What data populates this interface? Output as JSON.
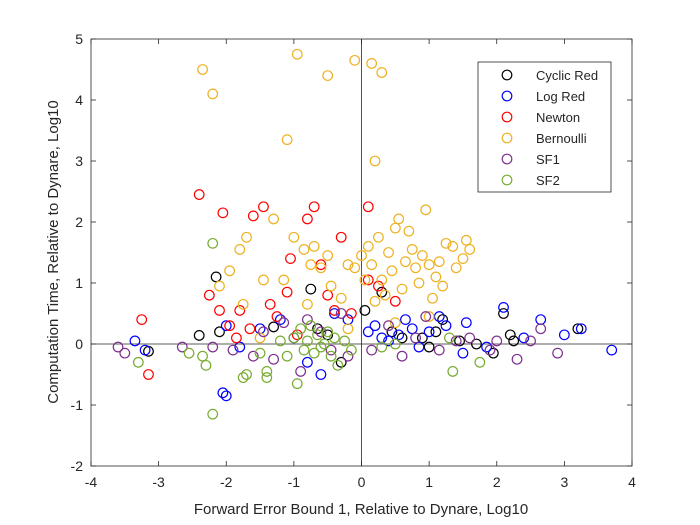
{
  "chart_data": {
    "type": "scatter",
    "title": "",
    "xlabel": "Forward Error Bound 1, Relative to Dynare, Log10",
    "ylabel": "Computation Time, Relative to Dynare, Log10",
    "xlim": [
      -4,
      4
    ],
    "ylim": [
      -2,
      5
    ],
    "xticks": [
      -4,
      -3,
      -2,
      -1,
      0,
      1,
      2,
      3,
      4
    ],
    "yticks": [
      -2,
      -1,
      0,
      1,
      2,
      3,
      4,
      5
    ],
    "reference_lines": {
      "x": 0,
      "y": 0
    },
    "grid": false,
    "legend_position": "top-right",
    "marker": "open-circle",
    "series": [
      {
        "name": "Cyclic Red",
        "color": "#000000",
        "points": [
          [
            -3.15,
            -0.12
          ],
          [
            -2.4,
            0.14
          ],
          [
            -2.15,
            1.1
          ],
          [
            -2.1,
            0.2
          ],
          [
            -1.3,
            0.28
          ],
          [
            -0.75,
            0.9
          ],
          [
            -0.65,
            0.25
          ],
          [
            -0.5,
            0.15
          ],
          [
            -0.3,
            -0.3
          ],
          [
            0.05,
            0.55
          ],
          [
            0.3,
            0.85
          ],
          [
            0.45,
            0.2
          ],
          [
            0.6,
            0.1
          ],
          [
            0.9,
            0.1
          ],
          [
            1.0,
            -0.05
          ],
          [
            1.1,
            0.2
          ],
          [
            1.2,
            0.4
          ],
          [
            1.45,
            0.05
          ],
          [
            1.7,
            0.0
          ],
          [
            1.95,
            -0.15
          ],
          [
            2.1,
            0.5
          ],
          [
            2.2,
            0.15
          ],
          [
            2.25,
            0.05
          ],
          [
            3.2,
            0.25
          ]
        ]
      },
      {
        "name": "Log Red",
        "color": "#0000FF",
        "points": [
          [
            -3.35,
            0.05
          ],
          [
            -3.2,
            -0.1
          ],
          [
            -2.05,
            -0.8
          ],
          [
            -2.0,
            -0.85
          ],
          [
            -2.0,
            0.3
          ],
          [
            -1.8,
            -0.05
          ],
          [
            -1.5,
            0.25
          ],
          [
            -1.2,
            0.4
          ],
          [
            -1.0,
            0.1
          ],
          [
            -0.8,
            -0.3
          ],
          [
            -0.6,
            -0.5
          ],
          [
            -0.4,
            0.5
          ],
          [
            -0.2,
            0.4
          ],
          [
            0.1,
            0.2
          ],
          [
            0.2,
            0.3
          ],
          [
            0.3,
            0.1
          ],
          [
            0.4,
            0.05
          ],
          [
            0.55,
            0.15
          ],
          [
            0.65,
            0.4
          ],
          [
            0.75,
            0.25
          ],
          [
            0.85,
            -0.05
          ],
          [
            1.0,
            0.2
          ],
          [
            1.15,
            0.45
          ],
          [
            1.25,
            0.3
          ],
          [
            1.5,
            -0.15
          ],
          [
            1.55,
            0.35
          ],
          [
            1.85,
            -0.05
          ],
          [
            2.1,
            0.6
          ],
          [
            2.4,
            0.1
          ],
          [
            2.65,
            0.4
          ],
          [
            3.0,
            0.15
          ],
          [
            3.25,
            0.25
          ],
          [
            3.7,
            -0.1
          ]
        ]
      },
      {
        "name": "Newton",
        "color": "#FF0000",
        "points": [
          [
            -3.25,
            0.4
          ],
          [
            -3.15,
            -0.5
          ],
          [
            -2.4,
            2.45
          ],
          [
            -2.25,
            0.8
          ],
          [
            -2.05,
            2.15
          ],
          [
            -2.1,
            0.55
          ],
          [
            -1.95,
            0.3
          ],
          [
            -1.85,
            0.1
          ],
          [
            -1.8,
            0.55
          ],
          [
            -1.65,
            0.25
          ],
          [
            -1.6,
            2.1
          ],
          [
            -1.45,
            2.25
          ],
          [
            -1.35,
            0.65
          ],
          [
            -1.25,
            0.45
          ],
          [
            -1.1,
            0.85
          ],
          [
            -1.05,
            1.4
          ],
          [
            -0.95,
            0.15
          ],
          [
            -0.8,
            2.05
          ],
          [
            -0.7,
            2.25
          ],
          [
            -0.6,
            1.3
          ],
          [
            -0.5,
            0.8
          ],
          [
            -0.4,
            0.55
          ],
          [
            -0.3,
            1.75
          ],
          [
            -0.15,
            0.5
          ],
          [
            0.1,
            1.05
          ],
          [
            0.1,
            2.25
          ],
          [
            0.25,
            0.95
          ],
          [
            0.5,
            0.7
          ]
        ]
      },
      {
        "name": "Bernoulli",
        "color": "#EDB120",
        "points": [
          [
            -2.35,
            4.5
          ],
          [
            -2.2,
            4.1
          ],
          [
            -1.1,
            3.35
          ],
          [
            -0.95,
            4.75
          ],
          [
            -0.5,
            4.4
          ],
          [
            -0.1,
            4.65
          ],
          [
            0.15,
            4.6
          ],
          [
            0.3,
            4.45
          ],
          [
            0.2,
            3.0
          ],
          [
            -2.1,
            0.95
          ],
          [
            -1.95,
            1.2
          ],
          [
            -1.75,
            0.65
          ],
          [
            -1.8,
            1.55
          ],
          [
            -1.7,
            1.75
          ],
          [
            -1.45,
            1.05
          ],
          [
            -1.3,
            2.05
          ],
          [
            -1.15,
            1.05
          ],
          [
            -1.0,
            1.75
          ],
          [
            -0.85,
            1.55
          ],
          [
            -0.8,
            0.65
          ],
          [
            -0.75,
            1.3
          ],
          [
            -0.7,
            1.6
          ],
          [
            -0.6,
            1.25
          ],
          [
            -0.5,
            1.45
          ],
          [
            -0.45,
            0.95
          ],
          [
            -0.3,
            0.75
          ],
          [
            -0.2,
            1.3
          ],
          [
            -0.1,
            1.25
          ],
          [
            0.0,
            1.45
          ],
          [
            0.05,
            1.05
          ],
          [
            0.1,
            1.6
          ],
          [
            0.15,
            1.3
          ],
          [
            0.2,
            0.7
          ],
          [
            0.25,
            1.75
          ],
          [
            0.3,
            1.05
          ],
          [
            0.35,
            0.8
          ],
          [
            0.4,
            1.5
          ],
          [
            0.45,
            1.2
          ],
          [
            0.5,
            1.9
          ],
          [
            0.55,
            2.05
          ],
          [
            0.6,
            0.9
          ],
          [
            0.65,
            1.35
          ],
          [
            0.7,
            1.85
          ],
          [
            0.75,
            1.55
          ],
          [
            0.8,
            1.25
          ],
          [
            0.85,
            1.0
          ],
          [
            0.9,
            1.45
          ],
          [
            0.95,
            2.2
          ],
          [
            1.0,
            1.3
          ],
          [
            1.05,
            0.75
          ],
          [
            1.1,
            1.1
          ],
          [
            1.15,
            1.35
          ],
          [
            1.2,
            0.95
          ],
          [
            1.25,
            1.65
          ],
          [
            1.35,
            1.6
          ],
          [
            1.4,
            1.25
          ],
          [
            1.5,
            1.4
          ],
          [
            1.55,
            1.7
          ],
          [
            1.6,
            1.55
          ],
          [
            1.0,
            0.45
          ],
          [
            0.5,
            0.35
          ],
          [
            -0.2,
            0.25
          ],
          [
            -1.5,
            0.1
          ]
        ]
      },
      {
        "name": "SF1",
        "color": "#7E2F8E",
        "points": [
          [
            -3.6,
            -0.05
          ],
          [
            -3.5,
            -0.15
          ],
          [
            -2.65,
            -0.05
          ],
          [
            -2.2,
            -0.05
          ],
          [
            -1.9,
            -0.1
          ],
          [
            -1.6,
            -0.2
          ],
          [
            -1.45,
            0.2
          ],
          [
            -1.3,
            -0.25
          ],
          [
            -1.15,
            0.35
          ],
          [
            -0.9,
            -0.45
          ],
          [
            -0.8,
            0.4
          ],
          [
            -0.6,
            0.2
          ],
          [
            -0.45,
            -0.1
          ],
          [
            -0.3,
            0.5
          ],
          [
            -0.2,
            -0.2
          ],
          [
            0.15,
            -0.1
          ],
          [
            0.4,
            0.3
          ],
          [
            0.6,
            -0.2
          ],
          [
            0.8,
            0.1
          ],
          [
            0.95,
            0.45
          ],
          [
            1.15,
            -0.1
          ],
          [
            1.4,
            0.05
          ],
          [
            1.6,
            0.1
          ],
          [
            1.9,
            -0.1
          ],
          [
            2.0,
            0.05
          ],
          [
            2.3,
            -0.25
          ],
          [
            2.5,
            0.05
          ],
          [
            2.65,
            0.25
          ],
          [
            2.9,
            -0.15
          ]
        ]
      },
      {
        "name": "SF2",
        "color": "#77AC30",
        "points": [
          [
            -3.3,
            -0.3
          ],
          [
            -2.55,
            -0.15
          ],
          [
            -2.35,
            -0.2
          ],
          [
            -2.3,
            -0.35
          ],
          [
            -2.2,
            1.65
          ],
          [
            -2.2,
            -1.15
          ],
          [
            -1.75,
            -0.55
          ],
          [
            -1.7,
            -0.5
          ],
          [
            -1.5,
            -0.15
          ],
          [
            -1.4,
            -0.45
          ],
          [
            -1.4,
            -0.55
          ],
          [
            -1.2,
            0.05
          ],
          [
            -1.1,
            -0.2
          ],
          [
            -1.0,
            0.1
          ],
          [
            -0.95,
            -0.65
          ],
          [
            -0.9,
            0.25
          ],
          [
            -0.85,
            -0.1
          ],
          [
            -0.8,
            0.05
          ],
          [
            -0.75,
            0.3
          ],
          [
            -0.7,
            -0.15
          ],
          [
            -0.65,
            0.15
          ],
          [
            -0.6,
            -0.05
          ],
          [
            -0.55,
            0.0
          ],
          [
            -0.5,
            0.2
          ],
          [
            -0.45,
            -0.2
          ],
          [
            -0.4,
            0.1
          ],
          [
            -0.35,
            -0.35
          ],
          [
            -0.25,
            0.05
          ],
          [
            -0.15,
            -0.1
          ],
          [
            0.5,
            0.0
          ],
          [
            1.3,
            0.1
          ],
          [
            1.35,
            -0.45
          ],
          [
            1.75,
            -0.3
          ],
          [
            0.3,
            -0.05
          ]
        ]
      }
    ]
  }
}
